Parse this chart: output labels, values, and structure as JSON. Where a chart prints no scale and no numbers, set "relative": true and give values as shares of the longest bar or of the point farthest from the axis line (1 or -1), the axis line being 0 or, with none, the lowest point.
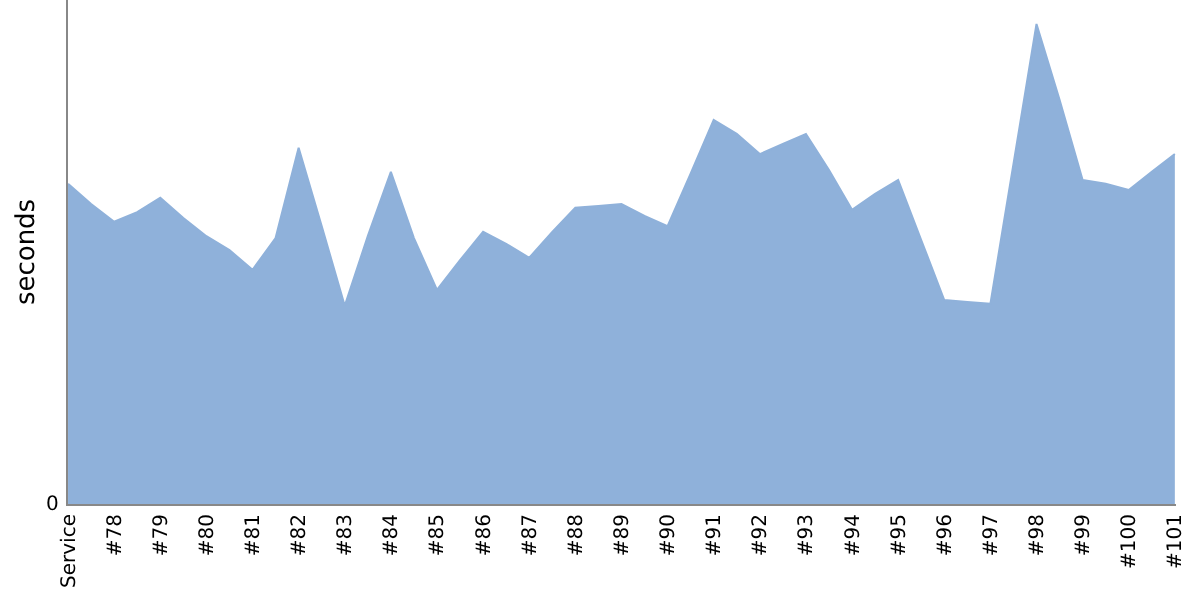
{
  "chart_data": {
    "type": "area",
    "ylabel": "seconds",
    "relative": true,
    "categories": [
      "Service",
      null,
      "#78",
      null,
      "#79",
      null,
      "#80",
      null,
      "#81",
      null,
      "#82",
      null,
      "#83",
      null,
      "#84",
      null,
      "#85",
      null,
      "#86",
      null,
      "#87",
      null,
      "#88",
      null,
      "#89",
      null,
      "#90",
      null,
      "#91",
      null,
      "#92",
      null,
      "#93",
      null,
      "#94",
      null,
      "#95",
      null,
      "#96",
      null,
      "#97",
      null,
      "#98",
      null,
      "#99",
      null,
      "#100",
      null,
      "#101"
    ],
    "series": [
      {
        "color": "#8fb1da",
        "values": [
          0.667,
          0.625,
          0.588,
          0.608,
          0.638,
          0.596,
          0.558,
          0.529,
          0.488,
          0.554,
          0.742,
          0.579,
          0.413,
          0.558,
          0.692,
          0.554,
          0.446,
          0.508,
          0.567,
          0.542,
          0.513,
          0.567,
          0.617,
          0.621,
          0.625,
          0.6,
          0.579,
          0.688,
          0.8,
          0.771,
          0.729,
          0.75,
          0.771,
          0.696,
          0.613,
          0.646,
          0.675,
          0.55,
          0.425,
          0.421,
          0.417,
          0.708,
          1,
          0.842,
          0.675,
          0.667,
          0.654,
          0.692,
          0.729
        ]
      }
    ],
    "annotations": [
      "0"
    ]
  }
}
